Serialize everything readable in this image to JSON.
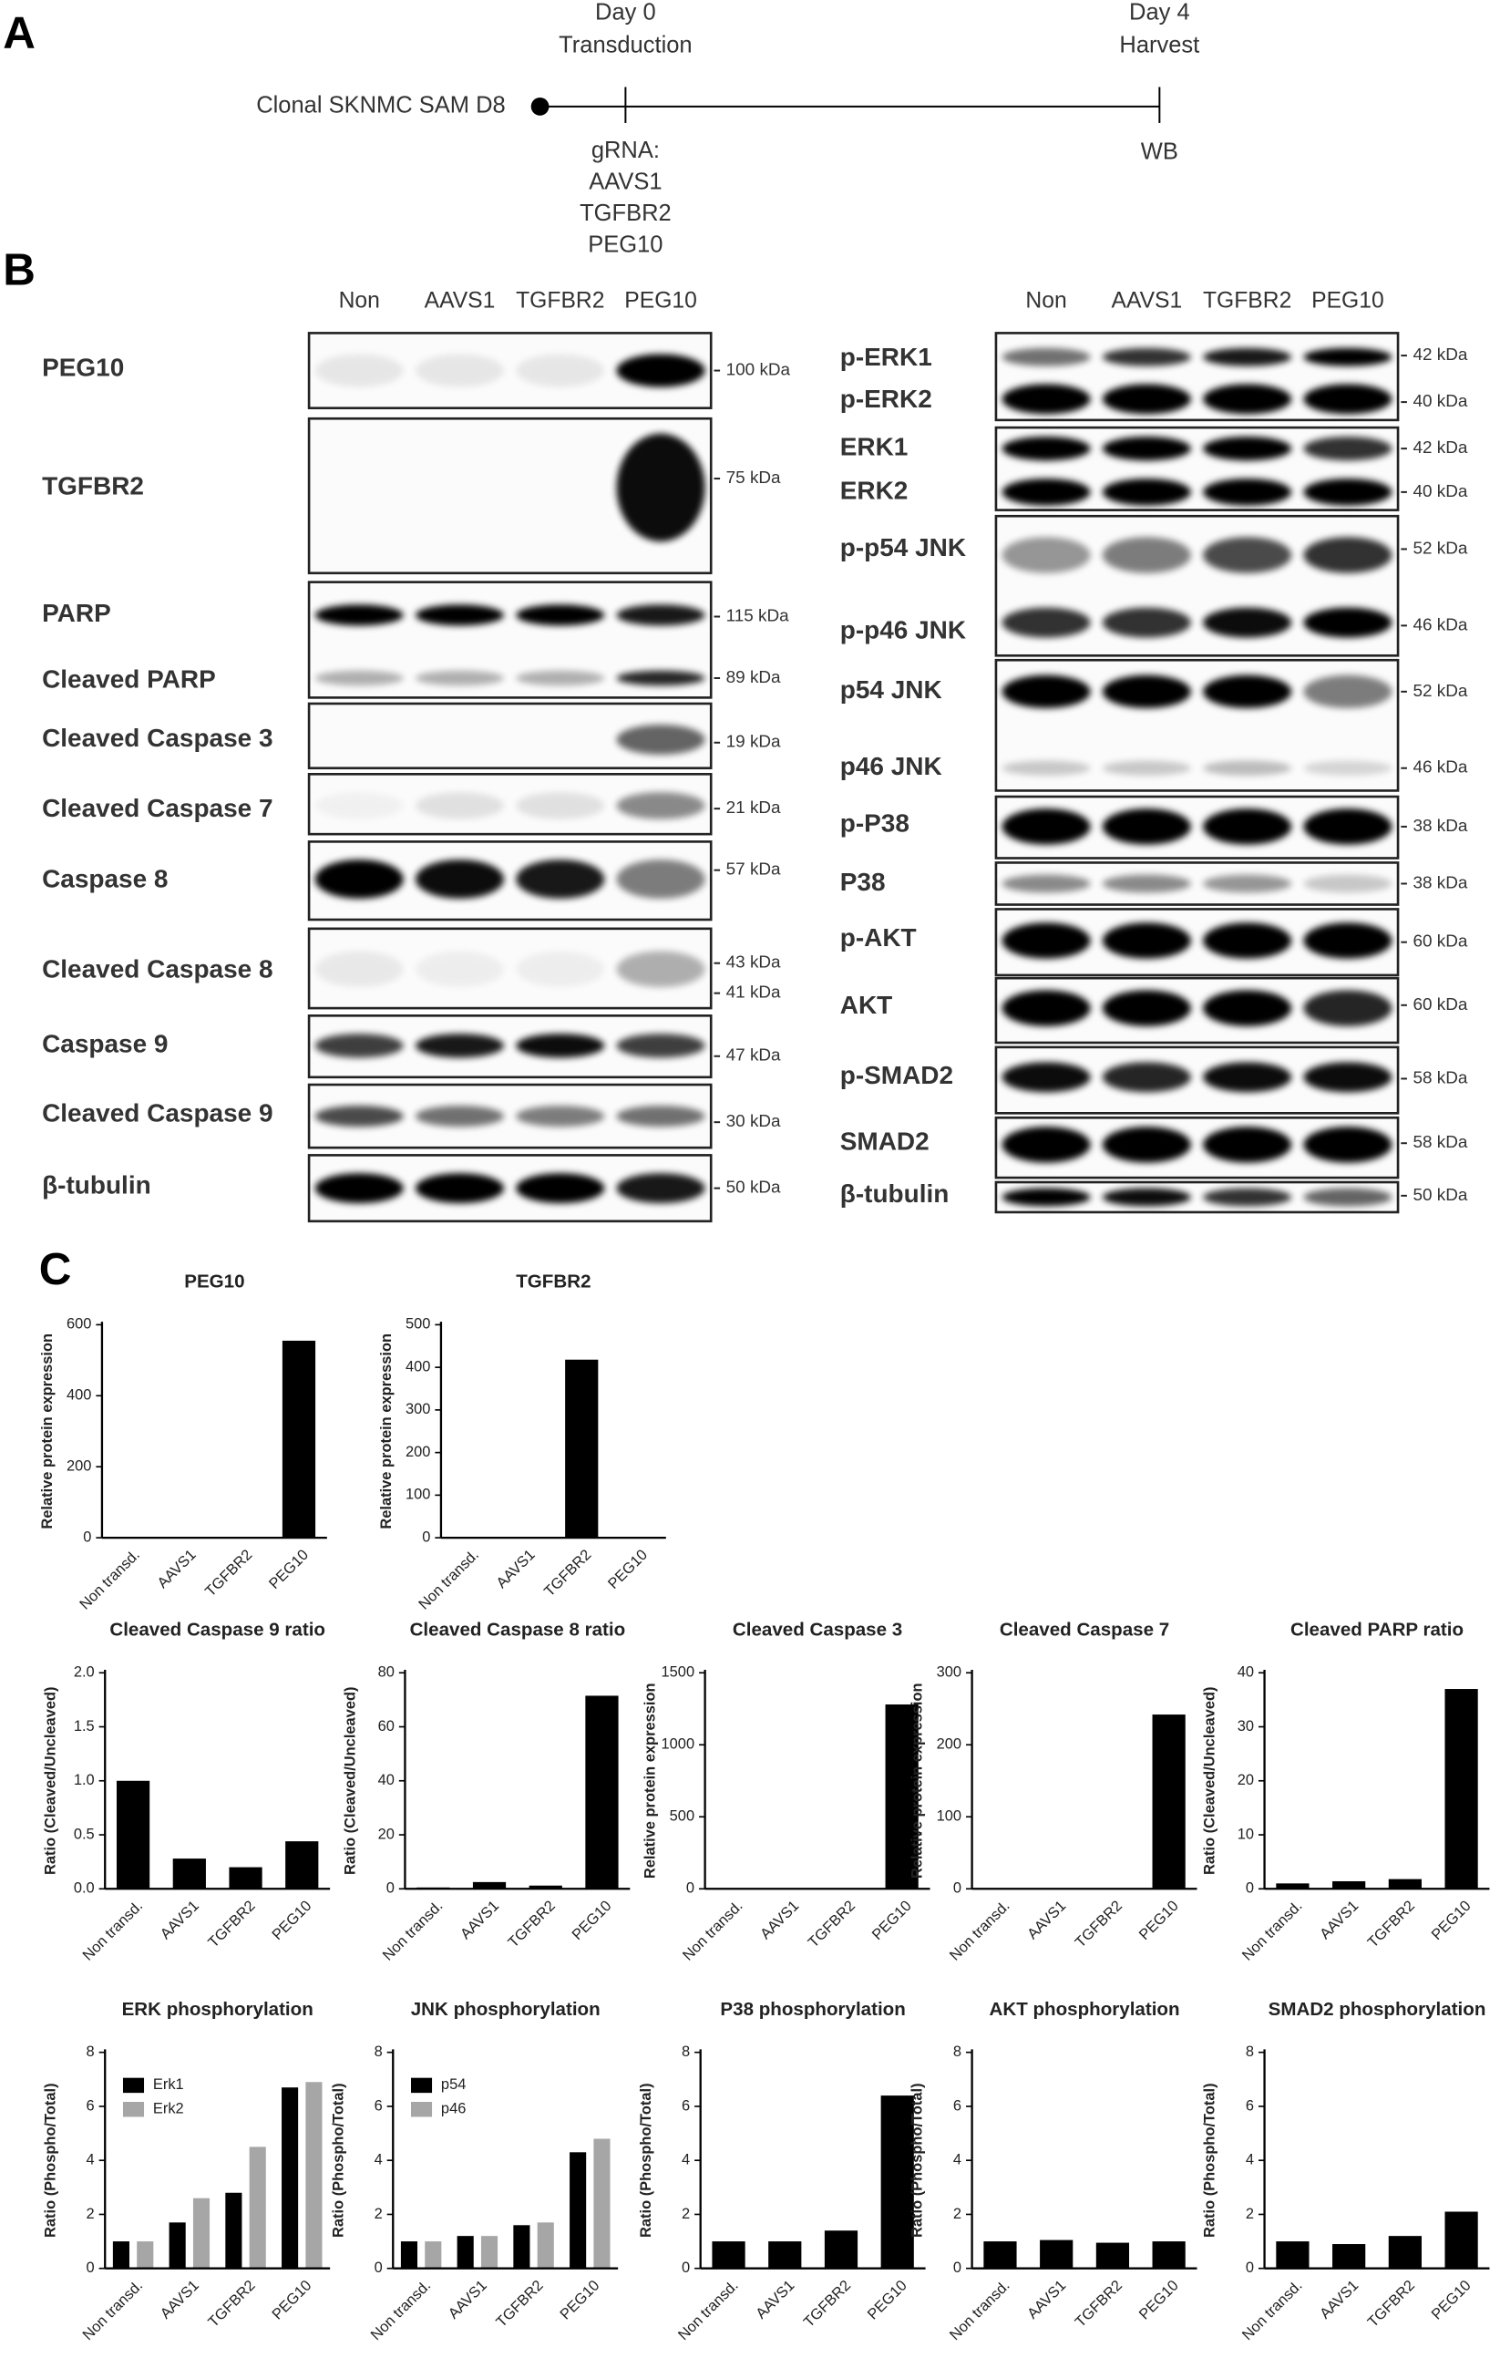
{
  "panel_labels": [
    "A",
    "B",
    "C"
  ],
  "timeline": {
    "start_label": "Clonal SKNMC SAM D8",
    "day0": [
      "Day 0",
      "Transduction"
    ],
    "gRNA": [
      "gRNA:",
      "AAVS1",
      "TGFBR2",
      "PEG10"
    ],
    "day4": [
      "Day 4",
      "Harvest"
    ],
    "day4_below": "WB"
  },
  "blots": {
    "left": {
      "lanes": [
        "Non",
        "AAVS1",
        "TGFBR2",
        "PEG10"
      ],
      "rows": [
        {
          "labels": [
            "PEG10"
          ],
          "kda": [
            "100 kDa"
          ]
        },
        {
          "labels": [
            "TGFBR2"
          ],
          "kda": [
            "75 kDa"
          ]
        },
        {
          "labels": [
            "PARP",
            "Cleaved PARP"
          ],
          "kda": [
            "115 kDa",
            "89 kDa"
          ]
        },
        {
          "labels": [
            "Cleaved Caspase 3"
          ],
          "kda": [
            "19 kDa"
          ]
        },
        {
          "labels": [
            "Cleaved Caspase 7"
          ],
          "kda": [
            "21 kDa"
          ]
        },
        {
          "labels": [
            "Caspase 8"
          ],
          "kda": [
            "57 kDa"
          ]
        },
        {
          "labels": [
            "Cleaved Caspase 8"
          ],
          "kda": [
            "43 kDa",
            "41 kDa"
          ]
        },
        {
          "labels": [
            "Caspase 9"
          ],
          "kda": [
            "47 kDa"
          ]
        },
        {
          "labels": [
            "Cleaved Caspase 9"
          ],
          "kda": [
            "30 kDa"
          ]
        },
        {
          "labels": [
            "β-tubulin"
          ],
          "kda": [
            "50 kDa"
          ]
        }
      ]
    },
    "right": {
      "lanes": [
        "Non",
        "AAVS1",
        "TGFBR2",
        "PEG10"
      ],
      "rows": [
        {
          "labels": [
            "p-ERK1",
            "p-ERK2"
          ],
          "kda": [
            "42 kDa",
            "40 kDa"
          ]
        },
        {
          "labels": [
            "ERK1",
            "ERK2"
          ],
          "kda": [
            "42 kDa",
            "40 kDa"
          ]
        },
        {
          "labels": [
            "p-p54 JNK",
            "p-p46 JNK"
          ],
          "kda": [
            "52 kDa",
            "46 kDa"
          ]
        },
        {
          "labels": [
            "p54 JNK",
            "p46 JNK"
          ],
          "kda": [
            "52 kDa",
            "46 kDa"
          ]
        },
        {
          "labels": [
            "p-P38"
          ],
          "kda": [
            "38 kDa"
          ]
        },
        {
          "labels": [
            "P38"
          ],
          "kda": [
            "38 kDa"
          ]
        },
        {
          "labels": [
            "p-AKT"
          ],
          "kda": [
            "60 kDa"
          ]
        },
        {
          "labels": [
            "AKT"
          ],
          "kda": [
            "60 kDa"
          ]
        },
        {
          "labels": [
            "p-SMAD2"
          ],
          "kda": [
            "58 kDa"
          ]
        },
        {
          "labels": [
            "SMAD2"
          ],
          "kda": [
            "58 kDa"
          ]
        },
        {
          "labels": [
            "β-tubulin"
          ],
          "kda": [
            "50 kDa"
          ]
        }
      ]
    }
  },
  "chart_data": [
    {
      "type": "bar",
      "title": "PEG10",
      "y_label": "Relative protein expression",
      "categories": [
        "Non transd.",
        "AAVS1",
        "TGFBR2",
        "PEG10"
      ],
      "values": [
        0,
        0,
        0,
        555
      ],
      "color": "#000000",
      "ylim": [
        0,
        600
      ],
      "yticks": [
        0,
        200,
        400,
        600
      ]
    },
    {
      "type": "bar",
      "title": "TGFBR2",
      "y_label": "Relative protein expression",
      "categories": [
        "Non transd.",
        "AAVS1",
        "TGFBR2",
        "PEG10"
      ],
      "values": [
        0,
        0,
        418,
        0
      ],
      "color": "#000000",
      "ylim": [
        0,
        500
      ],
      "yticks": [
        0,
        100,
        200,
        300,
        400,
        500
      ]
    },
    {
      "type": "bar",
      "title": "Cleaved Caspase 9 ratio",
      "y_label": "Ratio (Cleaved/Uncleaved)",
      "categories": [
        "Non transd.",
        "AAVS1",
        "TGFBR2",
        "PEG10"
      ],
      "values": [
        1.0,
        0.28,
        0.2,
        0.44
      ],
      "color": "#000000",
      "ylim": [
        0,
        2
      ],
      "yticks": [
        {
          "value": 0,
          "label": "0.0"
        },
        0.5,
        {
          "value": 1,
          "label": "1.0"
        },
        1.5,
        {
          "value": 2,
          "label": "2.0"
        }
      ]
    },
    {
      "type": "bar",
      "title": "Cleaved Caspase 8 ratio",
      "y_label": "Ratio (Cleaved/Uncleaved)",
      "categories": [
        "Non transd.",
        "AAVS1",
        "TGFBR2",
        "PEG10"
      ],
      "values": [
        0.5,
        2.5,
        1.2,
        71.5
      ],
      "color": "#000000",
      "ylim": [
        0,
        80
      ],
      "yticks": [
        0,
        20,
        40,
        60,
        80
      ]
    },
    {
      "type": "bar",
      "title": "Cleaved Caspase 3",
      "y_label": "Relative protein expression",
      "categories": [
        "Non transd.",
        "AAVS1",
        "TGFBR2",
        "PEG10"
      ],
      "values": [
        0,
        0,
        0,
        1280
      ],
      "color": "#000000",
      "ylim": [
        0,
        1500
      ],
      "yticks": [
        0,
        500,
        1000,
        1500
      ]
    },
    {
      "type": "bar",
      "title": "Cleaved Caspase 7",
      "y_label": "Relative protein expression",
      "categories": [
        "Non transd.",
        "AAVS1",
        "TGFBR2",
        "PEG10"
      ],
      "values": [
        0,
        0,
        0,
        242
      ],
      "color": "#000000",
      "ylim": [
        0,
        300
      ],
      "yticks": [
        0,
        100,
        200,
        300
      ]
    },
    {
      "type": "bar",
      "title": "Cleaved PARP ratio",
      "y_label": "Ratio (Cleaved/Uncleaved)",
      "categories": [
        "Non transd.",
        "AAVS1",
        "TGFBR2",
        "PEG10"
      ],
      "values": [
        1,
        1.4,
        1.8,
        37
      ],
      "color": "#000000",
      "ylim": [
        0,
        40
      ],
      "yticks": [
        0,
        10,
        20,
        30,
        40
      ]
    },
    {
      "type": "grouped_bar",
      "title": "ERK phosphorylation",
      "y_label": "Ratio (Phospho/Total)",
      "categories": [
        "Non transd.",
        "AAVS1",
        "TGFBR2",
        "PEG10"
      ],
      "series": [
        {
          "name": "Erk1",
          "color": "#000000",
          "values": [
            1,
            1.7,
            2.8,
            6.7
          ]
        },
        {
          "name": "Erk2",
          "color": "#a6a6a6",
          "values": [
            1,
            2.6,
            4.5,
            6.9
          ]
        }
      ],
      "ylim": [
        0,
        8
      ],
      "yticks": [
        0,
        2,
        4,
        6,
        8
      ],
      "legend": "top-left"
    },
    {
      "type": "grouped_bar",
      "title": "JNK phosphorylation",
      "y_label": "Ratio (Phospho/Total)",
      "categories": [
        "Non transd.",
        "AAVS1",
        "TGFBR2",
        "PEG10"
      ],
      "series": [
        {
          "name": "p54",
          "color": "#000000",
          "values": [
            1,
            1.2,
            1.6,
            4.3
          ]
        },
        {
          "name": "p46",
          "color": "#a6a6a6",
          "values": [
            1,
            1.2,
            1.7,
            4.8
          ]
        }
      ],
      "ylim": [
        0,
        8
      ],
      "yticks": [
        0,
        2,
        4,
        6,
        8
      ],
      "legend": "top-left"
    },
    {
      "type": "bar",
      "title": "P38 phosphorylation",
      "y_label": "Ratio (Phospho/Total)",
      "categories": [
        "Non transd.",
        "AAVS1",
        "TGFBR2",
        "PEG10"
      ],
      "values": [
        1,
        1,
        1.4,
        6.4
      ],
      "color": "#000000",
      "ylim": [
        0,
        8
      ],
      "yticks": [
        0,
        2,
        4,
        6,
        8
      ]
    },
    {
      "type": "bar",
      "title": "AKT phosphorylation",
      "y_label": "Ratio (Phospho/Total)",
      "categories": [
        "Non transd.",
        "AAVS1",
        "TGFBR2",
        "PEG10"
      ],
      "values": [
        1,
        1.05,
        0.95,
        1
      ],
      "color": "#000000",
      "ylim": [
        0,
        8
      ],
      "yticks": [
        0,
        2,
        4,
        6,
        8
      ]
    },
    {
      "type": "bar",
      "title": "SMAD2 phosphorylation",
      "y_label": "Ratio (Phospho/Total)",
      "categories": [
        "Non transd.",
        "AAVS1",
        "TGFBR2",
        "PEG10"
      ],
      "values": [
        1,
        0.9,
        1.2,
        2.1
      ],
      "color": "#000000",
      "ylim": [
        0,
        8
      ],
      "yticks": [
        0,
        2,
        4,
        6,
        8
      ]
    }
  ]
}
